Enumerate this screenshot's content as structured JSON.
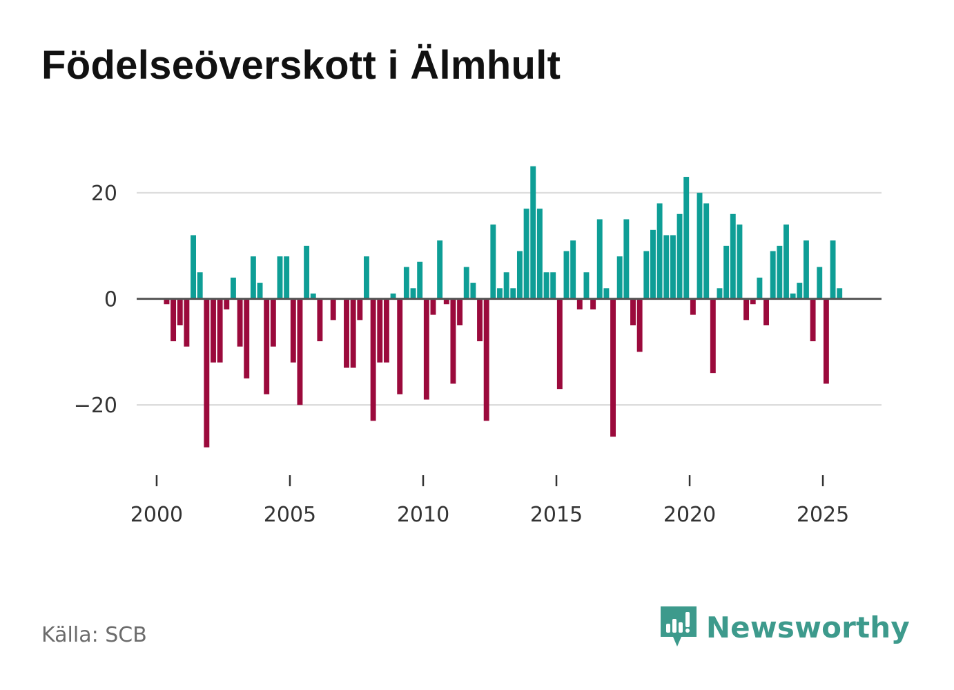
{
  "header": {
    "title": "Födelseöverskott i Älmhult"
  },
  "footer": {
    "source": "Källa: SCB",
    "brand": "Newsworthy"
  },
  "colors": {
    "positive": "#0e9e96",
    "negative": "#9b0a3c",
    "grid": "#dddddd",
    "zero_line": "#555555",
    "brand": "#3d9a8c"
  },
  "chart_data": {
    "type": "bar",
    "title": "Födelseöverskott i Älmhult",
    "xlabel": "",
    "ylabel": "",
    "frequency": "quarterly",
    "start": [
      2000,
      1
    ],
    "ylim": [
      -30,
      26
    ],
    "xlim": [
      1999.25,
      2027.2
    ],
    "yticks": [
      20,
      0,
      -20
    ],
    "ytick_labels": [
      "20",
      "0",
      "−20"
    ],
    "xticks": [
      2000,
      2005,
      2010,
      2015,
      2020,
      2025
    ],
    "xtick_labels": [
      "2000",
      "2005",
      "2010",
      "2015",
      "2020",
      "2025"
    ],
    "grid": true,
    "values": [
      0,
      -1,
      -8,
      -5,
      -9,
      12,
      5,
      -28,
      -12,
      -12,
      -2,
      4,
      -9,
      -15,
      8,
      3,
      -18,
      -9,
      8,
      8,
      -12,
      -20,
      10,
      1,
      -8,
      0,
      -4,
      0,
      -13,
      -13,
      -4,
      8,
      -23,
      -12,
      -12,
      1,
      -18,
      6,
      2,
      7,
      -19,
      -3,
      11,
      -1,
      -16,
      -5,
      6,
      3,
      -8,
      -23,
      14,
      2,
      5,
      2,
      9,
      17,
      25,
      17,
      5,
      5,
      -17,
      9,
      11,
      -2,
      5,
      -2,
      15,
      2,
      -26,
      8,
      15,
      -5,
      -10,
      9,
      13,
      18,
      12,
      12,
      16,
      23,
      -3,
      20,
      18,
      -14,
      2,
      10,
      16,
      14,
      -4,
      -1,
      4,
      -5,
      9,
      10,
      14,
      1,
      3,
      11,
      -8,
      6,
      -16,
      11,
      2
    ]
  }
}
